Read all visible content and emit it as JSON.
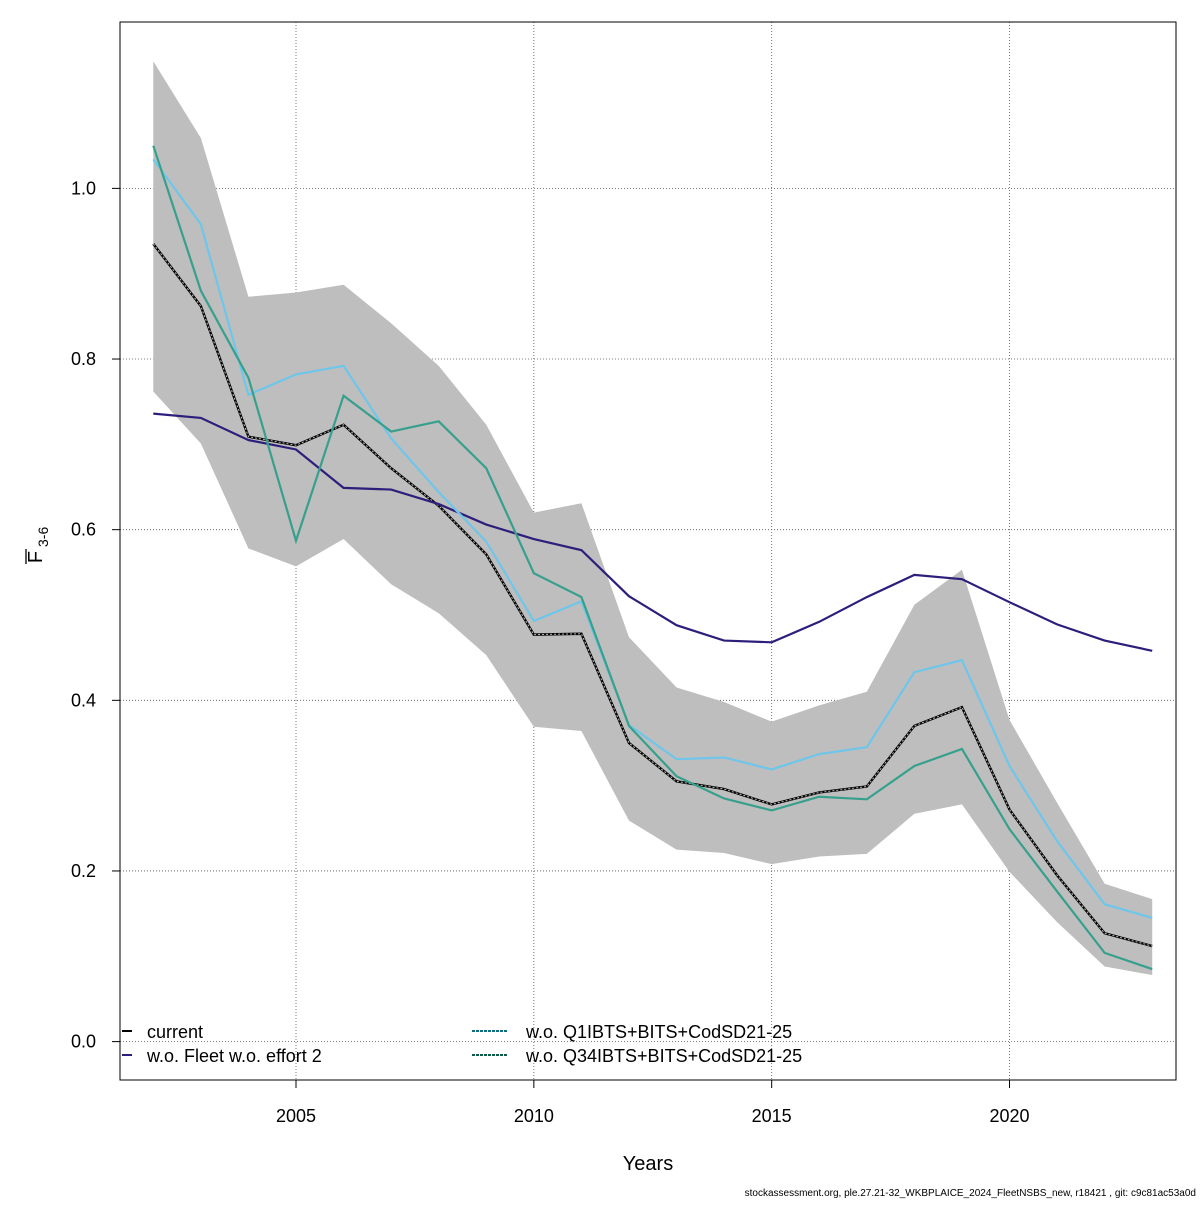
{
  "chart_data": {
    "type": "line",
    "xlabel": "Years",
    "ylabel_main": "F",
    "ylabel_sub": "3-6",
    "xlim": [
      2001.3,
      2023.5
    ],
    "ylim": [
      -0.045,
      1.195
    ],
    "x_ticks": [
      2005,
      2010,
      2015,
      2020
    ],
    "y_ticks": [
      0.0,
      0.2,
      0.4,
      0.6,
      0.8,
      1.0
    ],
    "y_tick_labels": [
      "0.0",
      "0.2",
      "0.4",
      "0.6",
      "0.8",
      "1.0"
    ],
    "grid": true,
    "x": [
      2002,
      2003,
      2004,
      2005,
      2006,
      2007,
      2008,
      2009,
      2010,
      2011,
      2012,
      2013,
      2014,
      2015,
      2016,
      2017,
      2018,
      2019,
      2020,
      2021,
      2022,
      2023
    ],
    "band": {
      "color": "#bebebe",
      "lower": [
        0.762,
        0.701,
        0.578,
        0.557,
        0.589,
        0.536,
        0.502,
        0.453,
        0.369,
        0.364,
        0.259,
        0.225,
        0.221,
        0.208,
        0.217,
        0.22,
        0.267,
        0.278,
        0.199,
        0.14,
        0.088,
        0.078
      ],
      "upper": [
        1.149,
        1.059,
        0.873,
        0.878,
        0.887,
        0.842,
        0.792,
        0.723,
        0.62,
        0.631,
        0.474,
        0.415,
        0.398,
        0.375,
        0.394,
        0.41,
        0.512,
        0.553,
        0.377,
        0.28,
        0.185,
        0.167
      ]
    },
    "series": [
      {
        "name": "current",
        "color": "#000000",
        "dashed": true,
        "values": [
          0.935,
          0.862,
          0.709,
          0.699,
          0.723,
          0.672,
          0.628,
          0.571,
          0.477,
          0.478,
          0.35,
          0.305,
          0.296,
          0.278,
          0.292,
          0.299,
          0.37,
          0.392,
          0.272,
          0.195,
          0.127,
          0.112
        ]
      },
      {
        "name": "w.o. Fleet w.o. effort 2",
        "color": "#2d1e7c",
        "dashed": false,
        "values": [
          0.736,
          0.731,
          0.705,
          0.694,
          0.649,
          0.647,
          0.63,
          0.606,
          0.589,
          0.576,
          0.522,
          0.488,
          0.47,
          0.468,
          0.492,
          0.521,
          0.547,
          0.542,
          0.515,
          0.489,
          0.47,
          0.458
        ]
      },
      {
        "name": "w.o. Q1IBTS+BITS+CodSD21-25",
        "color": "#6ec6ea",
        "dashed": false,
        "values": [
          1.034,
          0.958,
          0.758,
          0.782,
          0.792,
          0.707,
          0.644,
          0.586,
          0.493,
          0.516,
          0.371,
          0.331,
          0.333,
          0.319,
          0.337,
          0.345,
          0.433,
          0.447,
          0.323,
          0.235,
          0.161,
          0.145
        ]
      },
      {
        "name": "w.o. Q34IBTS+BITS+CodSD21-25",
        "color": "#37a08c",
        "dashed": false,
        "values": [
          1.05,
          0.88,
          0.778,
          0.587,
          0.757,
          0.715,
          0.727,
          0.672,
          0.549,
          0.521,
          0.37,
          0.311,
          0.285,
          0.271,
          0.287,
          0.284,
          0.323,
          0.343,
          0.249,
          0.176,
          0.104,
          0.085
        ]
      }
    ],
    "legend": {
      "placement": "bottom-left",
      "items": [
        {
          "label": "current",
          "color": "#000000"
        },
        {
          "label": "w.o. Fleet w.o. effort 2",
          "color": "#2d1e7c"
        },
        {
          "label": "w.o. Q1IBTS+BITS+CodSD21-25",
          "color": "#0e6e80"
        },
        {
          "label": "w.o. Q34IBTS+BITS+CodSD21-25",
          "color": "#0f5b4a"
        }
      ]
    }
  },
  "footer": "stockassessment.org, ple.27.21-32_WKBPLAICE_2024_FleetNSBS_new, r18421 , git: c9c81ac53a0d"
}
